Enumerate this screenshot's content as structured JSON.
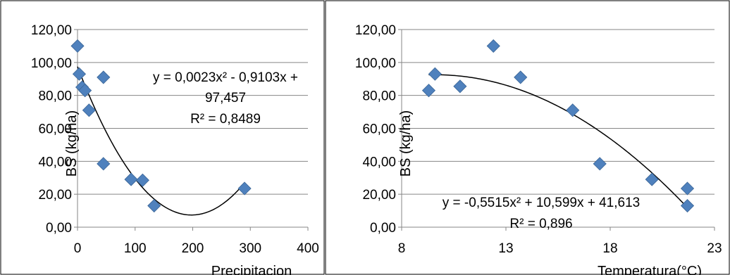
{
  "chart_data": [
    {
      "type": "scatter",
      "title": "",
      "xlabel": "Precipitacion",
      "ylabel": "BS (kg/ha)",
      "xlim": [
        0,
        400
      ],
      "ylim": [
        0,
        120
      ],
      "x_ticks": [
        "0",
        "100",
        "200",
        "300",
        "400"
      ],
      "y_ticks": [
        "0,00",
        "20,00",
        "40,00",
        "60,00",
        "80,00",
        "100,00",
        "120,00"
      ],
      "grid": "horizontal",
      "marker_color": "#4F81BD",
      "points": [
        {
          "x": 0,
          "y": 110
        },
        {
          "x": 3,
          "y": 93
        },
        {
          "x": 8,
          "y": 85
        },
        {
          "x": 13,
          "y": 83
        },
        {
          "x": 20,
          "y": 71
        },
        {
          "x": 45,
          "y": 91
        },
        {
          "x": 45,
          "y": 38.5
        },
        {
          "x": 93,
          "y": 29
        },
        {
          "x": 113,
          "y": 28.5
        },
        {
          "x": 133,
          "y": 13
        },
        {
          "x": 290,
          "y": 23.5
        }
      ],
      "trendline": {
        "type": "polynomial",
        "coefficients": [
          0.0023,
          -0.9103,
          97.457
        ],
        "x_range": [
          0,
          290
        ]
      },
      "equation": {
        "line1": "y = 0,0023x² - 0,9103x +",
        "line2": "97,457",
        "r2": "R² = 0,8489"
      }
    },
    {
      "type": "scatter",
      "title": "",
      "xlabel": "Temperatura(°C)",
      "ylabel": "BS (kg/ha)",
      "xlim": [
        8,
        23
      ],
      "ylim": [
        0,
        120
      ],
      "x_ticks": [
        "8",
        "13",
        "18",
        "23"
      ],
      "y_ticks": [
        "0,00",
        "20,00",
        "40,00",
        "60,00",
        "80,00",
        "100,00",
        "120,00"
      ],
      "grid": "horizontal",
      "marker_color": "#4F81BD",
      "points": [
        {
          "x": 9.3,
          "y": 83
        },
        {
          "x": 9.6,
          "y": 93
        },
        {
          "x": 10.8,
          "y": 85.5
        },
        {
          "x": 12.4,
          "y": 110
        },
        {
          "x": 13.7,
          "y": 91
        },
        {
          "x": 16.2,
          "y": 71
        },
        {
          "x": 17.5,
          "y": 38.5
        },
        {
          "x": 20.0,
          "y": 29
        },
        {
          "x": 21.7,
          "y": 23.5
        },
        {
          "x": 21.7,
          "y": 13
        }
      ],
      "trendline": {
        "type": "polynomial",
        "coefficients": [
          -0.5515,
          10.599,
          41.613
        ],
        "x_range": [
          9.3,
          21.7
        ]
      },
      "equation": {
        "line1": "y = -0,5515x² + 10,599x + 41,613",
        "line2": "",
        "r2": "R² = 0,896"
      }
    }
  ]
}
